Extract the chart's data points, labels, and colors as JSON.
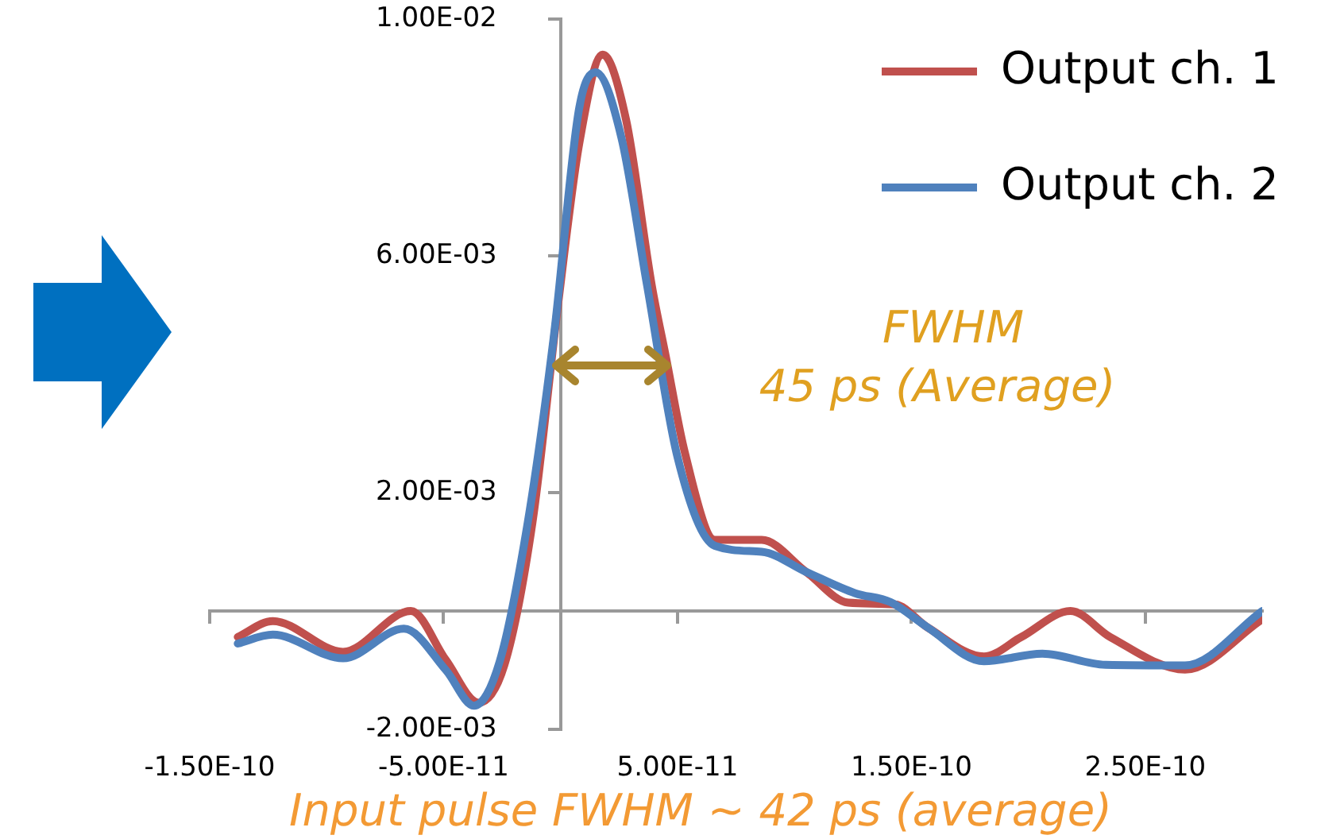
{
  "chart_data": {
    "type": "line",
    "xlim": [
      -1.5e-10,
      3e-10
    ],
    "xticks": [
      {
        "value": -1.5e-10,
        "label": "-1.50E-10"
      },
      {
        "value": -5e-11,
        "label": "-5.00E-11"
      },
      {
        "value": 5e-11,
        "label": "5.00E-11"
      },
      {
        "value": 1.5e-10,
        "label": "1.50E-10"
      },
      {
        "value": 2.5e-10,
        "label": "2.50E-10"
      }
    ],
    "ylim": [
      -0.002,
      0.01
    ],
    "yticks": [
      {
        "value": -0.002,
        "label": "-2.00E-03"
      },
      {
        "value": 0.002,
        "label": "2.00E-03"
      },
      {
        "value": 0.006,
        "label": "6.00E-03"
      },
      {
        "value": 0.01,
        "label": "1.00E-02"
      }
    ],
    "series": [
      {
        "name": "Output ch. 2",
        "color": "#4f81bd",
        "x": [
          -1.38e-10,
          -1.23e-10,
          -9.3e-11,
          -6.7e-11,
          -4.9e-11,
          -3.7e-11,
          -2.6e-11,
          -1.4e-11,
          -3e-12,
          8e-12,
          1.5e-11,
          2.6e-11,
          3.7e-11,
          5e-11,
          6.6e-11,
          8.6e-11,
          1.05e-10,
          1.26e-10,
          1.41e-10,
          1.57e-10,
          1.81e-10,
          2.06e-10,
          2.33e-10,
          2.67e-10,
          3e-10
        ],
        "values": [
          -0.00055,
          -0.0004,
          -0.0008,
          -0.0003,
          -0.001,
          -0.0016,
          -0.00085,
          0.0015,
          0.0046,
          0.0085,
          0.0091,
          0.008,
          0.0055,
          0.0026,
          0.0011,
          0.001,
          0.00066,
          0.0003,
          0.00015,
          -0.00028,
          -0.00085,
          -0.00072,
          -0.00091,
          -0.00092,
          0.0
        ]
      },
      {
        "name": "Output ch. 1",
        "color": "#c0504d",
        "x": [
          -1.38e-10,
          -1.23e-10,
          -9.3e-11,
          -6.4e-11,
          -4.9e-11,
          -3.5e-11,
          -2.4e-11,
          -1.2e-11,
          -1e-12,
          8e-12,
          1.8e-11,
          2.8e-11,
          3.9e-11,
          4.5e-11,
          5.3e-11,
          6.6e-11,
          8.6e-11,
          1.05e-10,
          1.23e-10,
          1.43e-10,
          1.57e-10,
          1.81e-10,
          1.97e-10,
          2.18e-10,
          2.35e-10,
          2.67e-10,
          3e-10
        ],
        "values": [
          -0.00044,
          -0.00017,
          -0.00069,
          0.0,
          -0.00083,
          -0.00155,
          -0.00091,
          0.0015,
          0.0052,
          0.0079,
          0.0094,
          0.0083,
          0.0055,
          0.0043,
          0.0027,
          0.0012,
          0.0012,
          0.00066,
          0.00014,
          0.00011,
          -0.00028,
          -0.00077,
          -0.00044,
          0.0,
          -0.00044,
          -0.00099,
          -0.00014
        ]
      }
    ],
    "legend": "top right",
    "marker": "none",
    "line_style": "solid",
    "annotations": [
      "FWHM",
      "45 ps (Average)",
      "Input pulse FWHM ~ 42 ps (average)"
    ]
  }
}
